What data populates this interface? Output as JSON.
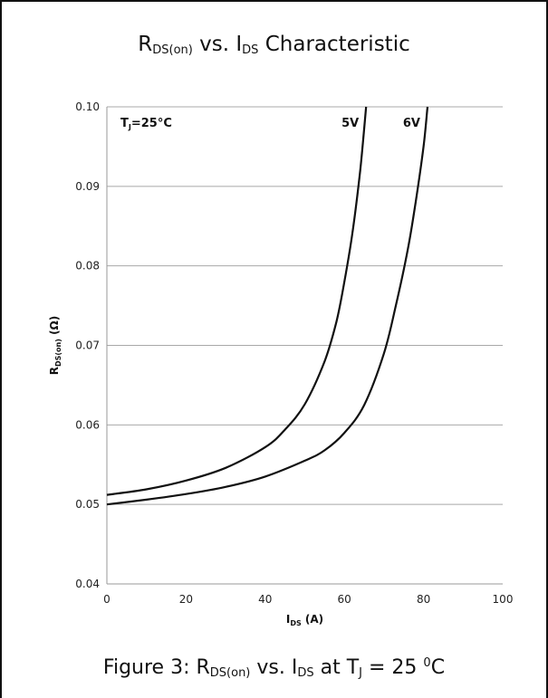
{
  "title": {
    "text_pre": "R",
    "text_sub1": "DS(on)",
    "text_mid": " vs. I",
    "text_sub2": "DS",
    "text_post": " Characteristic"
  },
  "caption": {
    "text_pre": "Figure 3: R",
    "text_sub1": "DS(on)",
    "text_mid": " vs. I",
    "text_sub2": "DS",
    "text_mid2": "  at T",
    "text_sub3": "J",
    "text_mid3": " = 25 ",
    "text_sup": "0",
    "text_post": "C"
  },
  "chart_data": {
    "type": "line",
    "xlabel": "IDS (A)",
    "xlabel_main": "I",
    "xlabel_sub": "DS",
    "xlabel_unit": " (A)",
    "ylabel": "RDS(on) (Ω)",
    "ylabel_main": "R",
    "ylabel_sub": "DS(on)",
    "ylabel_unit": " (Ω)",
    "xlim": [
      0,
      100
    ],
    "ylim": [
      0.04,
      0.1
    ],
    "xticks": [
      "0",
      "20",
      "40",
      "60",
      "80",
      "100"
    ],
    "yticks": [
      "0.04",
      "0.05",
      "0.06",
      "0.07",
      "0.08",
      "0.09",
      "0.10"
    ],
    "grid": "horizontal",
    "annotation": "TJ=25°C",
    "annotation_main": "T",
    "annotation_sub": "J",
    "annotation_rest": "=25°C",
    "series": [
      {
        "name": "5V",
        "x": [
          0,
          10,
          20,
          30,
          40,
          45,
          50,
          55,
          58,
          60,
          62,
          64,
          65.5
        ],
        "y": [
          0.0512,
          0.0519,
          0.053,
          0.0546,
          0.0572,
          0.0594,
          0.0626,
          0.068,
          0.073,
          0.078,
          0.084,
          0.092,
          0.1
        ]
      },
      {
        "name": "6V",
        "x": [
          0,
          10,
          20,
          30,
          40,
          50,
          55,
          60,
          65,
          70,
          73,
          76,
          78,
          80,
          81
        ],
        "y": [
          0.05,
          0.0506,
          0.0513,
          0.0522,
          0.0535,
          0.0555,
          0.0568,
          0.059,
          0.0625,
          0.069,
          0.075,
          0.082,
          0.088,
          0.095,
          0.1
        ]
      }
    ]
  }
}
